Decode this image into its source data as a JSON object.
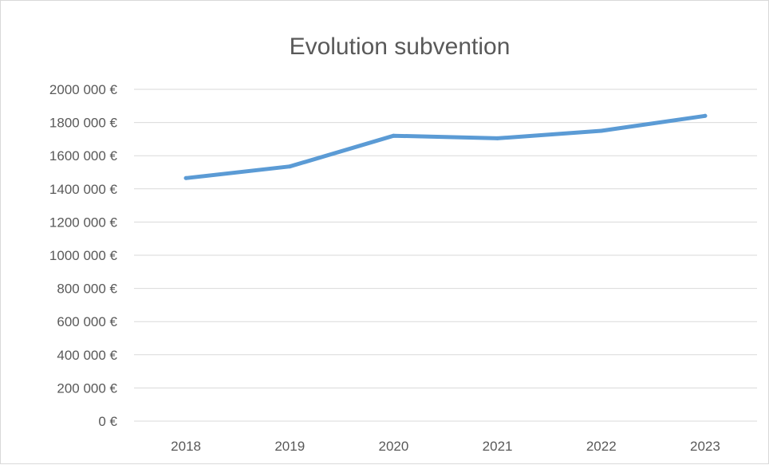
{
  "chart_data": {
    "type": "line",
    "title": "Evolution subvention",
    "categories": [
      "2018",
      "2019",
      "2020",
      "2021",
      "2022",
      "2023"
    ],
    "series": [
      {
        "values": [
          1465000,
          1535000,
          1720000,
          1705000,
          1750000,
          1840000
        ],
        "color": "#5b9bd5"
      }
    ],
    "ylim": [
      0,
      2000000
    ],
    "yticks": [
      0,
      200000,
      400000,
      600000,
      800000,
      1000000,
      1200000,
      1400000,
      1600000,
      1800000,
      2000000
    ],
    "ytick_labels": [
      "0 €",
      "200 000 €",
      "400 000 €",
      "600 000 €",
      "800 000 €",
      "1000 000 €",
      "1200 000 €",
      "1400 000 €",
      "1600 000 €",
      "1800 000 €",
      "2000 000 €"
    ],
    "grid": true,
    "legend": "none",
    "gridline_color": "#d9d9d9",
    "text_color": "#595959"
  }
}
